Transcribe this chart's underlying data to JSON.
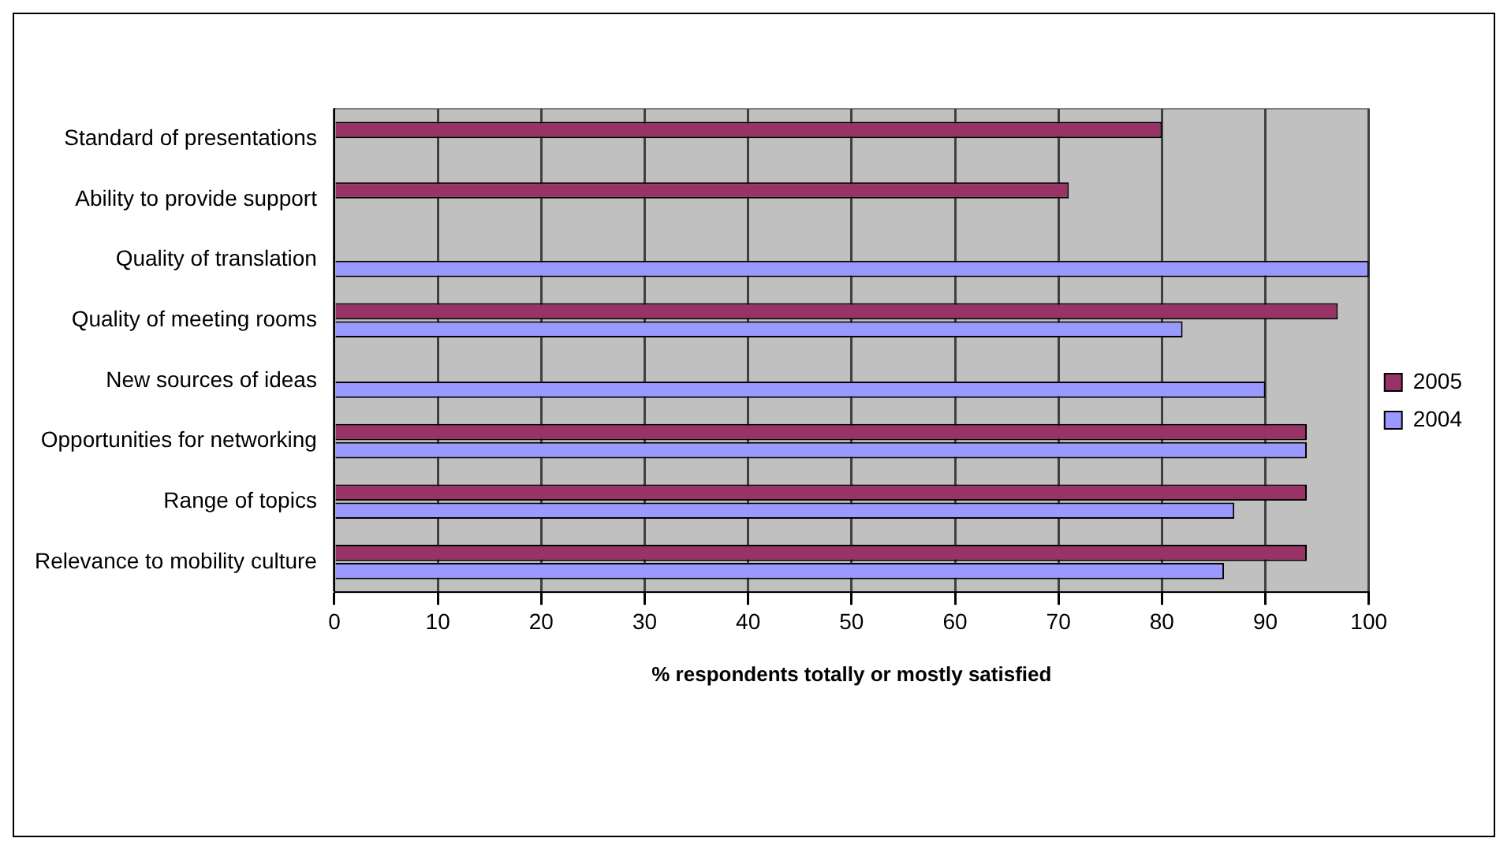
{
  "chart_data": {
    "type": "bar",
    "orientation": "horizontal",
    "xlabel": "% respondents totally or mostly satisfied",
    "categories": [
      "Standard of presentations",
      "Ability to provide support",
      "Quality of translation",
      "Quality of meeting rooms",
      "New sources of ideas",
      "Opportunities for networking",
      "Range of topics",
      "Relevance to mobility culture"
    ],
    "series": [
      {
        "name": "2005",
        "color": "#993366",
        "values": [
          80,
          71,
          null,
          97,
          null,
          94,
          94,
          94
        ]
      },
      {
        "name": "2004",
        "color": "#9999ff",
        "values": [
          null,
          null,
          100,
          82,
          90,
          94,
          87,
          86
        ]
      }
    ],
    "xlim": [
      0,
      100
    ],
    "xticks": [
      0,
      10,
      20,
      30,
      40,
      50,
      60,
      70,
      80,
      90,
      100
    ],
    "grid": "x",
    "legend": "right"
  }
}
